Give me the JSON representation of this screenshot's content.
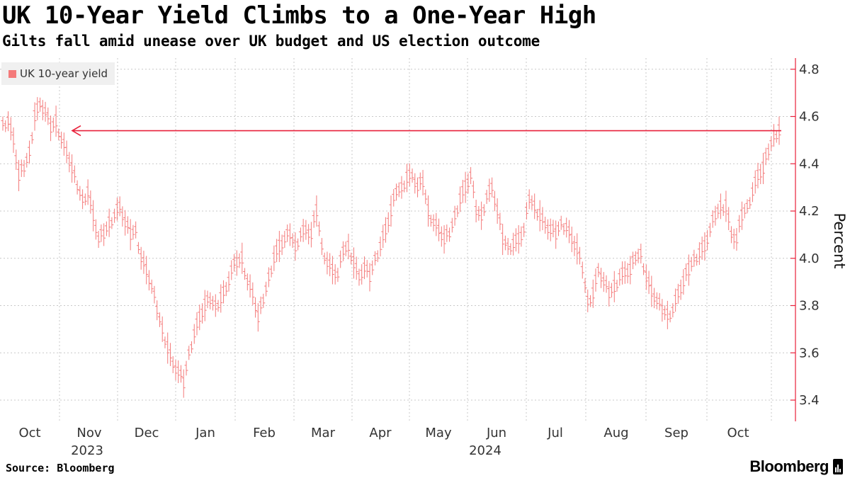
{
  "header": {
    "title": "UK 10-Year Yield Climbs to a One-Year High",
    "subtitle": "Gilts fall amid unease over UK budget and US election outcome"
  },
  "footer": {
    "source": "Source: Bloomberg",
    "brand": "Bloomberg"
  },
  "colors": {
    "series": "#f47a7a",
    "annotation": "#e8203a",
    "grid": "#c8c8c8",
    "axis": "#e8203a"
  },
  "chart_data": {
    "type": "line",
    "title": "UK 10-Year Yield Climbs to a One-Year High",
    "subtitle": "Gilts fall amid unease over UK budget and US election outcome",
    "ylabel": "Percent",
    "xlabel": "",
    "ylim": [
      3.3,
      4.85
    ],
    "yticks": [
      3.4,
      3.6,
      3.8,
      4.0,
      4.2,
      4.4,
      4.6,
      4.8
    ],
    "grid": true,
    "legend": {
      "position": "top-left",
      "entries": [
        "UK 10-year yield"
      ]
    },
    "x_months": [
      "Oct",
      "Nov",
      "Dec",
      "Jan",
      "Feb",
      "Mar",
      "Apr",
      "May",
      "Jun",
      "Jul",
      "Aug",
      "Sep",
      "Oct"
    ],
    "x_years": [
      "2023",
      "2024"
    ],
    "series": [
      {
        "name": "UK 10-year yield",
        "style": "high-low bars",
        "frequency": "approx. every 3 trading days",
        "start": "2023-09-29",
        "end": "2024-10-31",
        "values": [
          4.57,
          4.58,
          4.5,
          4.35,
          4.38,
          4.45,
          4.6,
          4.65,
          4.62,
          4.55,
          4.58,
          4.5,
          4.45,
          4.38,
          4.3,
          4.25,
          4.28,
          4.18,
          4.08,
          4.1,
          4.15,
          4.18,
          4.22,
          4.15,
          4.1,
          4.12,
          4.0,
          3.95,
          3.88,
          3.78,
          3.7,
          3.62,
          3.55,
          3.52,
          3.47,
          3.6,
          3.68,
          3.75,
          3.8,
          3.82,
          3.8,
          3.83,
          3.87,
          3.95,
          3.98,
          4.0,
          3.9,
          3.85,
          3.75,
          3.82,
          3.92,
          4.0,
          4.05,
          4.08,
          4.1,
          4.05,
          4.1,
          4.12,
          4.1,
          4.2,
          4.05,
          3.98,
          3.95,
          3.93,
          4.03,
          4.05,
          3.98,
          3.92,
          3.96,
          3.92,
          4.0,
          4.05,
          4.12,
          4.2,
          4.28,
          4.3,
          4.34,
          4.35,
          4.3,
          4.32,
          4.2,
          4.15,
          4.12,
          4.08,
          4.1,
          4.18,
          4.25,
          4.3,
          4.35,
          4.2,
          4.18,
          4.26,
          4.3,
          4.2,
          4.08,
          4.05,
          4.06,
          4.08,
          4.12,
          4.25,
          4.22,
          4.18,
          4.14,
          4.12,
          4.1,
          4.15,
          4.13,
          4.08,
          4.04,
          3.95,
          3.82,
          3.85,
          3.95,
          3.9,
          3.85,
          3.88,
          3.92,
          3.94,
          3.95,
          4.0,
          4.02,
          3.92,
          3.86,
          3.82,
          3.78,
          3.76,
          3.78,
          3.85,
          3.9,
          3.95,
          4.0,
          4.02,
          4.05,
          4.12,
          4.18,
          4.22,
          4.22,
          4.1,
          4.08,
          4.18,
          4.22,
          4.28,
          4.35,
          4.38,
          4.45,
          4.52,
          4.54
        ]
      }
    ],
    "annotations": [
      {
        "type": "horizontal-arrow",
        "y": 4.54,
        "from": "2024-10-31",
        "to": "2023-10-20",
        "meaning": "latest yield level matches October 2023 high"
      }
    ]
  }
}
